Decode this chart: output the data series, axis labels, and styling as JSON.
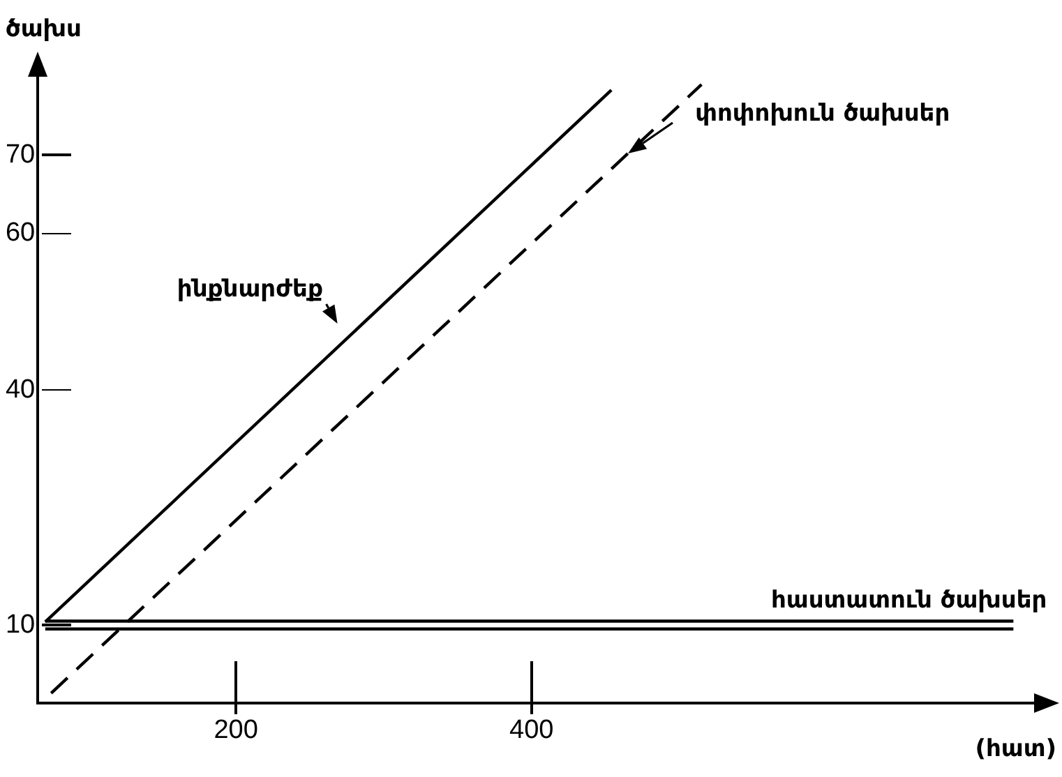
{
  "chart_data": {
    "type": "line",
    "ylabel": "ծախս",
    "xlabel": "(հատ)",
    "xlim": [
      66,
      740
    ],
    "xticks": [
      200,
      400
    ],
    "ylim": [
      0,
      80
    ],
    "yticks": [
      10,
      40,
      60,
      70
    ],
    "grid": false,
    "legend": false,
    "marker": "none",
    "series": [
      {
        "name": "ինքնարժեք",
        "color": "#000000",
        "x": [
          71,
          454
        ],
        "values": [
          10.4,
          78.3
        ],
        "line_style": "solid"
      },
      {
        "name": "փոփոխուն ծախսեր",
        "color": "#000000",
        "x": [
          75,
          515
        ],
        "values": [
          1.3,
          79
        ],
        "line_style": "dashed"
      },
      {
        "name": "հաստատուն ծախսեր",
        "color": "#000000",
        "x": [
          71,
          726
        ],
        "values": [
          10.5,
          10.5
        ],
        "line_style": "solid"
      },
      {
        "color": "#000000",
        "x": [
          71,
          726
        ],
        "values": [
          9.5,
          9.5
        ],
        "line_style": "solid"
      }
    ]
  }
}
